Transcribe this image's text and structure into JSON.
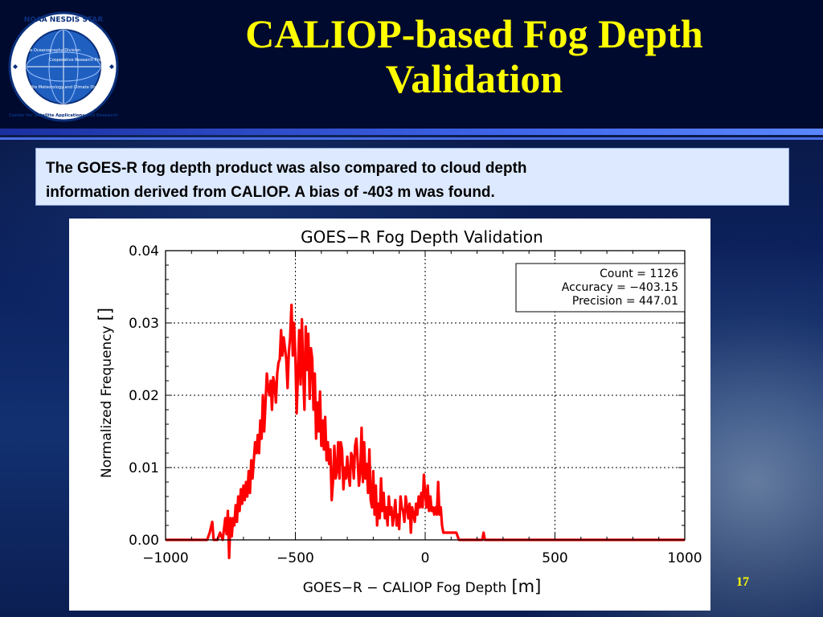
{
  "slide": {
    "title_line1": "CALIOP-based Fog Depth",
    "title_line2": "Validation",
    "description_line1": "The GOES-R fog depth product was also compared to cloud depth",
    "description_line2": "information derived from CALIOP. A bias of -403 m was found.",
    "page_number": "17"
  },
  "logo": {
    "ring_text": "NOAA NESDIS STAR",
    "ring_text_bottom": "Center for Satellite Applications and Research",
    "segment_1": "Satellite Oceanography Division",
    "segment_2": "Cooperative Research Program",
    "segment_3": "Satellite Meteorology and Climate Division",
    "colors": {
      "ring": "#ffffff",
      "globe": "#1f5fc0",
      "border": "#0a2f7a"
    }
  },
  "chart_data": {
    "type": "line",
    "title": "GOES−R Fog Depth Validation",
    "xlabel": "GOES−R − CALIOP Fog Depth",
    "xlabel_unit": "[m]",
    "ylabel": "Normalized Frequency",
    "ylabel_unit": "[]",
    "xlim": [
      -1000,
      1000
    ],
    "ylim": [
      0,
      0.04
    ],
    "xticks": [
      -1000,
      -500,
      0,
      500,
      1000
    ],
    "xtick_labels": [
      "−1000",
      "−500",
      "0",
      "500",
      "1000"
    ],
    "yticks": [
      0,
      0.01,
      0.02,
      0.03,
      0.04
    ],
    "ytick_labels": [
      "0.00",
      "0.01",
      "0.02",
      "0.03",
      "0.04"
    ],
    "grid": "dotted",
    "stats": {
      "line1": "Count = 1126",
      "line2": "Accuracy = −403.15",
      "line3": "Precision = 447.01"
    },
    "series": [
      {
        "color": "#ff0000",
        "points": [
          [
            -1000,
            0
          ],
          [
            -840,
            0
          ],
          [
            -830,
            0.001
          ],
          [
            -820,
            0.0025
          ],
          [
            -815,
            0
          ],
          [
            -800,
            0
          ],
          [
            -790,
            0.001
          ],
          [
            -780,
            0
          ],
          [
            -770,
            0.003
          ],
          [
            -765,
            0.0008
          ],
          [
            -760,
            0.004
          ],
          [
            -755,
            -0.0025
          ],
          [
            -750,
            0.003
          ],
          [
            -745,
            0.0005
          ],
          [
            -740,
            0.003
          ],
          [
            -735,
            0.002
          ],
          [
            -730,
            0.0048
          ],
          [
            -725,
            0.0025
          ],
          [
            -720,
            0.006
          ],
          [
            -715,
            0.004
          ],
          [
            -710,
            0.007
          ],
          [
            -705,
            0.005
          ],
          [
            -700,
            0.0075
          ],
          [
            -695,
            0.0055
          ],
          [
            -690,
            0.008
          ],
          [
            -685,
            0.006
          ],
          [
            -680,
            0.0095
          ],
          [
            -675,
            0.0065
          ],
          [
            -670,
            0.011
          ],
          [
            -665,
            0.0085
          ],
          [
            -660,
            0.011
          ],
          [
            -655,
            0.0135
          ],
          [
            -650,
            0.012
          ],
          [
            -645,
            0.0145
          ],
          [
            -640,
            0.012
          ],
          [
            -635,
            0.0165
          ],
          [
            -630,
            0.014
          ],
          [
            -625,
            0.02
          ],
          [
            -620,
            0.015
          ],
          [
            -615,
            0.019
          ],
          [
            -610,
            0.023
          ],
          [
            -605,
            0.021
          ],
          [
            -600,
            0.02
          ],
          [
            -595,
            0.022
          ],
          [
            -590,
            0.018
          ],
          [
            -585,
            0.0225
          ],
          [
            -580,
            0.0215
          ],
          [
            -575,
            0.019
          ],
          [
            -570,
            0.023
          ],
          [
            -565,
            0.0245
          ],
          [
            -560,
            0.025
          ],
          [
            -555,
            0.029
          ],
          [
            -550,
            0.0255
          ],
          [
            -545,
            0.028
          ],
          [
            -540,
            0.0265
          ],
          [
            -535,
            0.025
          ],
          [
            -530,
            0.021
          ],
          [
            -525,
            0.026
          ],
          [
            -520,
            0.028
          ],
          [
            -515,
            0.0325
          ],
          [
            -510,
            0.0255
          ],
          [
            -505,
            0.03
          ],
          [
            -500,
            0.0255
          ],
          [
            -495,
            0.0175
          ],
          [
            -490,
            0.023
          ],
          [
            -485,
            0.029
          ],
          [
            -480,
            0.0215
          ],
          [
            -475,
            0.0305
          ],
          [
            -470,
            0.0235
          ],
          [
            -465,
            0.018
          ],
          [
            -460,
            0.0295
          ],
          [
            -455,
            0.0235
          ],
          [
            -450,
            0.0285
          ],
          [
            -445,
            0.0195
          ],
          [
            -440,
            0.0265
          ],
          [
            -435,
            0.025
          ],
          [
            -430,
            0.018
          ],
          [
            -425,
            0.023
          ],
          [
            -420,
            0.014
          ],
          [
            -415,
            0.019
          ],
          [
            -410,
            0.015
          ],
          [
            -405,
            0.0205
          ],
          [
            -400,
            0.013
          ],
          [
            -395,
            0.0165
          ],
          [
            -390,
            0.0125
          ],
          [
            -385,
            0.017
          ],
          [
            -380,
            0.011
          ],
          [
            -375,
            0.0135
          ],
          [
            -370,
            0.0105
          ],
          [
            -365,
            0.0125
          ],
          [
            -360,
            0.0055
          ],
          [
            -355,
            0.008
          ],
          [
            -350,
            0.013
          ],
          [
            -345,
            0.0085
          ],
          [
            -340,
            0.0095
          ],
          [
            -335,
            0.0135
          ],
          [
            -330,
            0.0085
          ],
          [
            -325,
            0.0135
          ],
          [
            -320,
            0.0125
          ],
          [
            -315,
            0.007
          ],
          [
            -310,
            0.01
          ],
          [
            -305,
            0.0085
          ],
          [
            -300,
            0.0115
          ],
          [
            -295,
            0.009
          ],
          [
            -290,
            0.0075
          ],
          [
            -285,
            0.012
          ],
          [
            -280,
            0.0115
          ],
          [
            -275,
            0.0085
          ],
          [
            -270,
            0.013
          ],
          [
            -265,
            0.014
          ],
          [
            -260,
            0.011
          ],
          [
            -255,
            0.0075
          ],
          [
            -250,
            0.0095
          ],
          [
            -245,
            0.0155
          ],
          [
            -240,
            0.008
          ],
          [
            -235,
            0.0135
          ],
          [
            -230,
            0.0085
          ],
          [
            -225,
            0.0105
          ],
          [
            -220,
            0.0065
          ],
          [
            -215,
            0.0125
          ],
          [
            -210,
            0.0055
          ],
          [
            -205,
            0.0045
          ],
          [
            -200,
            0.0095
          ],
          [
            -195,
            0.0035
          ],
          [
            -190,
            0.0075
          ],
          [
            -185,
            0.002
          ],
          [
            -180,
            0.005
          ],
          [
            -175,
            0.003
          ],
          [
            -170,
            0.0085
          ],
          [
            -165,
            0.004
          ],
          [
            -160,
            0.0065
          ],
          [
            -155,
            0.003
          ],
          [
            -150,
            0.0045
          ],
          [
            -145,
            0.002
          ],
          [
            -140,
            0.006
          ],
          [
            -135,
            0.0035
          ],
          [
            -130,
            0.0045
          ],
          [
            -125,
            0.002
          ],
          [
            -120,
            0.0035
          ],
          [
            -115,
            0.0055
          ],
          [
            -110,
            0.002
          ],
          [
            -105,
            0.0035
          ],
          [
            -100,
            0.0015
          ],
          [
            -95,
            0.006
          ],
          [
            -90,
            0.0045
          ],
          [
            -85,
            0.004
          ],
          [
            -80,
            0.0025
          ],
          [
            -75,
            0.006
          ],
          [
            -70,
            0.0045
          ],
          [
            -65,
            0.003
          ],
          [
            -60,
            0.005
          ],
          [
            -55,
            0.001
          ],
          [
            -50,
            0.0045
          ],
          [
            -45,
            0.0035
          ],
          [
            -40,
            0.0025
          ],
          [
            -35,
            0.005
          ],
          [
            -30,
            0.0035
          ],
          [
            -25,
            0.006
          ],
          [
            -20,
            0.0045
          ],
          [
            -15,
            0.0065
          ],
          [
            -10,
            0.0045
          ],
          [
            -5,
            0.009
          ],
          [
            0,
            0.0065
          ],
          [
            5,
            0.0045
          ],
          [
            10,
            0.0075
          ],
          [
            15,
            0.004
          ],
          [
            20,
            0.006
          ],
          [
            25,
            0.004
          ],
          [
            30,
            0.0045
          ],
          [
            35,
            0.0035
          ],
          [
            40,
            0.0045
          ],
          [
            45,
            0.0035
          ],
          [
            50,
            0.008
          ],
          [
            55,
            0.0035
          ],
          [
            60,
            0.0045
          ],
          [
            65,
            0.002
          ],
          [
            70,
            0.001
          ],
          [
            75,
            0.001
          ],
          [
            80,
            0.001
          ],
          [
            85,
            0.001
          ],
          [
            90,
            0.001
          ],
          [
            95,
            0.001
          ],
          [
            100,
            0.001
          ],
          [
            105,
            0.001
          ],
          [
            110,
            0.001
          ],
          [
            120,
            0.001
          ],
          [
            125,
            0.0005
          ],
          [
            130,
            0
          ],
          [
            220,
            0
          ],
          [
            225,
            0.001
          ],
          [
            230,
            0
          ],
          [
            1000,
            0
          ]
        ]
      }
    ]
  }
}
